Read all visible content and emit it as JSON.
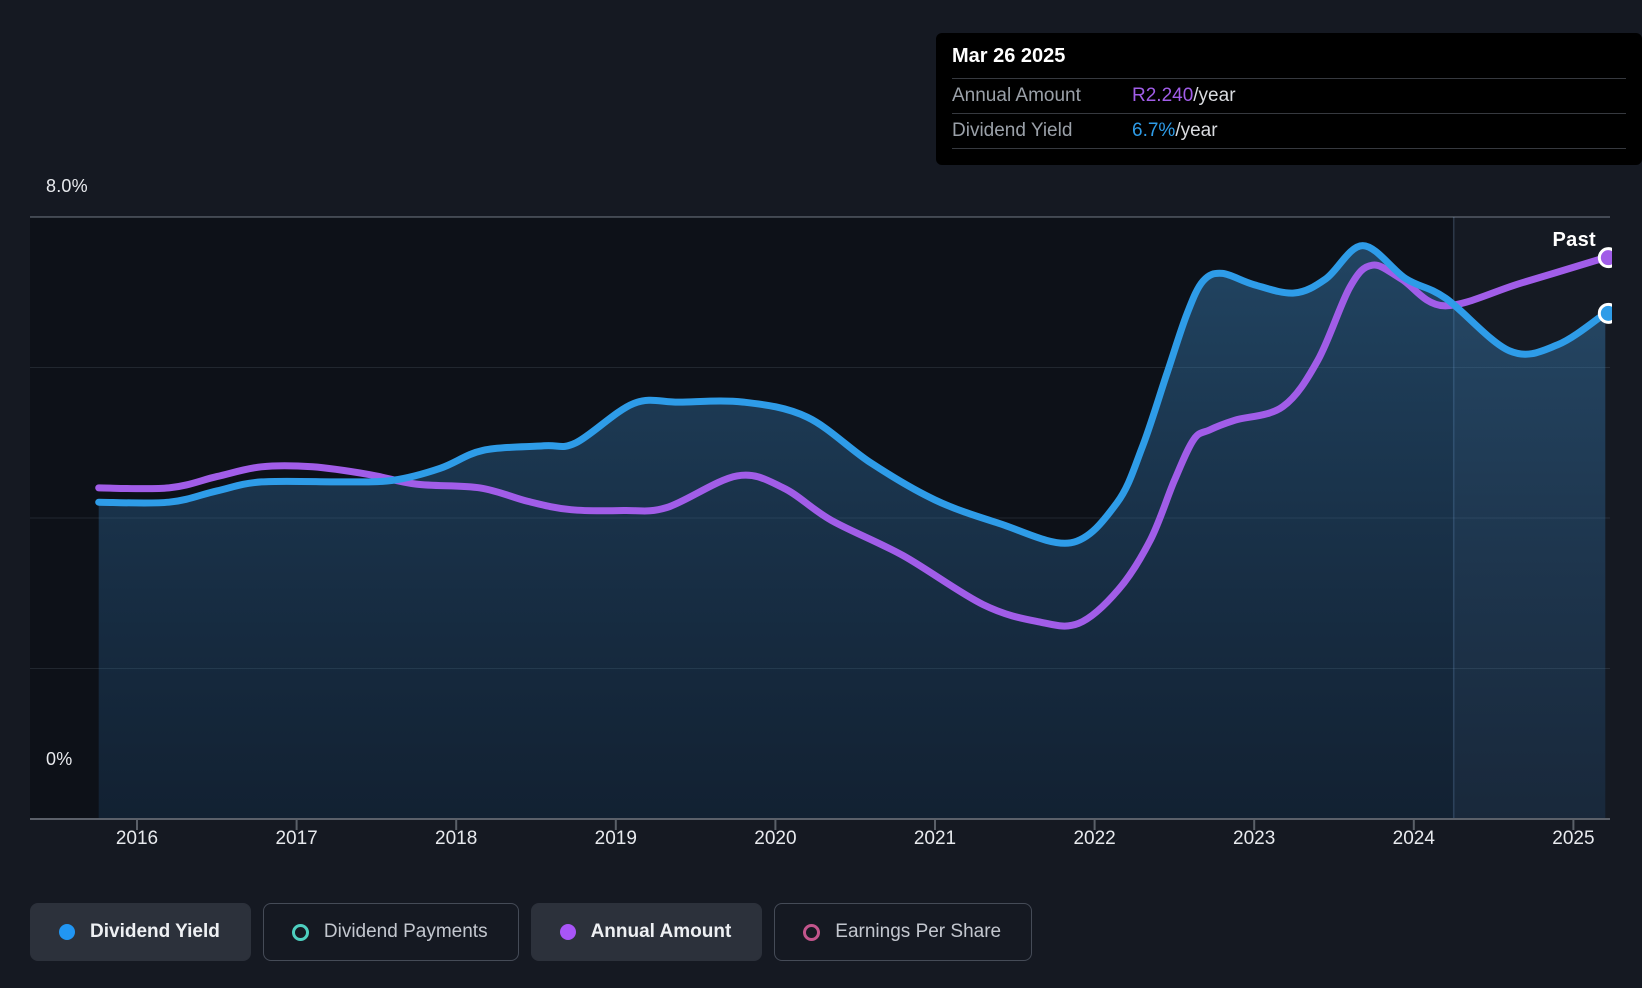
{
  "tooltip": {
    "title": "Mar 26 2025",
    "rows": [
      {
        "label": "Annual Amount",
        "value": "R2.240",
        "suffix": "/year",
        "color": "#a15de8"
      },
      {
        "label": "Dividend Yield",
        "value": "6.7%",
        "suffix": "/year",
        "color": "#2e9ce8"
      }
    ]
  },
  "past_label": "Past",
  "y_axis": {
    "top_label": "8.0%",
    "bottom_label": "0%"
  },
  "legend": {
    "items": [
      {
        "label": "Dividend Yield",
        "color": "#2196f3",
        "marker": "filled",
        "active": true
      },
      {
        "label": "Dividend Payments",
        "color": "#4ecfc0",
        "marker": "ring",
        "active": false
      },
      {
        "label": "Annual Amount",
        "color": "#a855f7",
        "marker": "filled",
        "active": true
      },
      {
        "label": "Earnings Per Share",
        "color": "#c2558c",
        "marker": "ring",
        "active": false
      }
    ]
  },
  "colors": {
    "dividend_yield": "#2e9ce8",
    "annual_amount": "#a15de8",
    "page_bg": "#151922",
    "plot_bg": "#0d1118",
    "tooltip_bg": "#000000"
  },
  "chart_data": {
    "type": "line",
    "title": "Dividend history — Mar 26 2025: Annual Amount R2.240/year, Dividend Yield 6.7%/year",
    "x_range": [
      2015.76,
      2025.2
    ],
    "ylim": [
      0,
      8
    ],
    "y_unit": "%",
    "y_gridlines": [
      0,
      2,
      4,
      6,
      8
    ],
    "x_ticks": [
      2016,
      2017,
      2018,
      2019,
      2020,
      2021,
      2022,
      2023,
      2024,
      2025
    ],
    "past_divider_x": 2024.25,
    "legend_position": "bottom",
    "series": [
      {
        "name": "Annual Amount",
        "color": "#a15de8",
        "area": false,
        "end_marker": true,
        "end_value_label": "R2.240/year",
        "points": [
          [
            2015.76,
            4.4
          ],
          [
            2016.2,
            4.4
          ],
          [
            2016.5,
            4.55
          ],
          [
            2016.78,
            4.68
          ],
          [
            2017.1,
            4.68
          ],
          [
            2017.45,
            4.58
          ],
          [
            2017.75,
            4.45
          ],
          [
            2018.15,
            4.4
          ],
          [
            2018.45,
            4.22
          ],
          [
            2018.72,
            4.11
          ],
          [
            2019.05,
            4.1
          ],
          [
            2019.32,
            4.14
          ],
          [
            2019.76,
            4.56
          ],
          [
            2020.05,
            4.4
          ],
          [
            2020.35,
            3.97
          ],
          [
            2020.8,
            3.5
          ],
          [
            2021.3,
            2.85
          ],
          [
            2021.65,
            2.62
          ],
          [
            2021.9,
            2.6
          ],
          [
            2022.15,
            3.05
          ],
          [
            2022.35,
            3.71
          ],
          [
            2022.5,
            4.5
          ],
          [
            2022.62,
            5.04
          ],
          [
            2022.72,
            5.17
          ],
          [
            2022.88,
            5.3
          ],
          [
            2023.18,
            5.48
          ],
          [
            2023.4,
            6.1
          ],
          [
            2023.6,
            7.07
          ],
          [
            2023.74,
            7.36
          ],
          [
            2023.92,
            7.18
          ],
          [
            2024.19,
            6.82
          ],
          [
            2024.67,
            7.12
          ],
          [
            2025.2,
            7.46
          ]
        ]
      },
      {
        "name": "Dividend Yield",
        "color": "#2e9ce8",
        "area": true,
        "end_marker": true,
        "end_value_label": "6.7%/year",
        "points": [
          [
            2015.76,
            4.21
          ],
          [
            2016.2,
            4.21
          ],
          [
            2016.5,
            4.36
          ],
          [
            2016.78,
            4.48
          ],
          [
            2017.3,
            4.48
          ],
          [
            2017.6,
            4.5
          ],
          [
            2017.9,
            4.66
          ],
          [
            2018.17,
            4.9
          ],
          [
            2018.55,
            4.96
          ],
          [
            2018.75,
            5.0
          ],
          [
            2019.11,
            5.52
          ],
          [
            2019.4,
            5.54
          ],
          [
            2019.8,
            5.54
          ],
          [
            2020.2,
            5.34
          ],
          [
            2020.6,
            4.73
          ],
          [
            2021.0,
            4.24
          ],
          [
            2021.4,
            3.93
          ],
          [
            2021.85,
            3.67
          ],
          [
            2022.14,
            4.2
          ],
          [
            2022.3,
            4.95
          ],
          [
            2022.45,
            5.9
          ],
          [
            2022.58,
            6.72
          ],
          [
            2022.68,
            7.15
          ],
          [
            2022.8,
            7.25
          ],
          [
            2023.0,
            7.1
          ],
          [
            2023.25,
            6.99
          ],
          [
            2023.45,
            7.18
          ],
          [
            2023.68,
            7.62
          ],
          [
            2023.95,
            7.18
          ],
          [
            2024.2,
            6.92
          ],
          [
            2024.6,
            6.22
          ],
          [
            2024.9,
            6.3
          ],
          [
            2025.2,
            6.72
          ]
        ]
      }
    ]
  }
}
